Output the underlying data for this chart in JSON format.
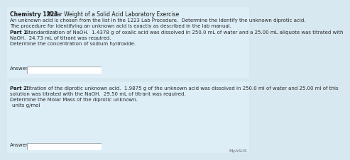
{
  "bg_color": "#d8e8f0",
  "box_face": "#ddeef7",
  "box_edge": "#b8cdd8",
  "white": "#ffffff",
  "text_dark": "#1a1a1a",
  "text_med": "#2a2a2a",
  "title_bold": "Chemistry 1223",
  "title_rest": " Molar Weight of a Solid Acid Laboratory Exercise",
  "line2": "An unknown acid is chosen from the list in the 1223 Lab Procedure.  Determine the Identify the unknown diprotic acid.",
  "line3": "The procedure for identifying an unknown acid is exactly as described in the lab manual.",
  "part1_bold": "Part 1:",
  "part1_rest": " Standardization of NaOH.  1.4378 g of oxalic acid was dissolved in 250.0 mL of water and a 25.00 mL aliquote was titrated with",
  "part1_line2": "NaOH.  24.73 mL of titrant was required.",
  "part1_question": "Determine the concentration of sodium hydroxide.",
  "answer_label": "Answer:",
  "part2_bold": "Part 2:",
  "part2_rest": " Titration of the diprotic unknown acid.  1.9875 g of the unknown acid was dissolved in 250.0 ml of water and 25.00 ml of this",
  "part2_line2": "solution was titrated with the NaOH.  29.50 mL of titrant was required.",
  "part2_question": "Determine the Molar Mass of the diprotic unknown.",
  "part2_units": "units g/mol",
  "myasus": "MyASUS",
  "fs": 5.0,
  "fs_title": 5.5
}
